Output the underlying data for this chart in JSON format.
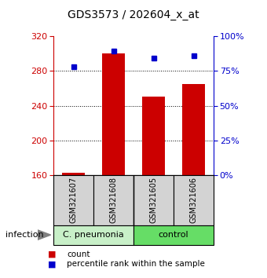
{
  "title": "GDS3573 / 202604_x_at",
  "samples": [
    "GSM321607",
    "GSM321608",
    "GSM321605",
    "GSM321606"
  ],
  "counts": [
    163,
    300,
    250,
    265
  ],
  "percentiles": [
    78,
    89,
    84,
    86
  ],
  "y_min": 160,
  "y_max": 320,
  "y_ticks_left": [
    160,
    200,
    240,
    280,
    320
  ],
  "y_ticks_right": [
    0,
    25,
    50,
    75,
    100
  ],
  "bar_color": "#CC0000",
  "percentile_color": "#0000CC",
  "bar_width": 0.55,
  "baseline": 160,
  "legend_count_label": "count",
  "legend_pct_label": "percentile rank within the sample",
  "factor_label": "infection",
  "sample_box_color": "#D3D3D3",
  "group1_name": "C. pneumonia",
  "group2_name": "control",
  "group1_bg": "#C8F0C8",
  "group2_bg": "#66DD66",
  "group1_samples": [
    0,
    1
  ],
  "group2_samples": [
    2,
    3
  ]
}
